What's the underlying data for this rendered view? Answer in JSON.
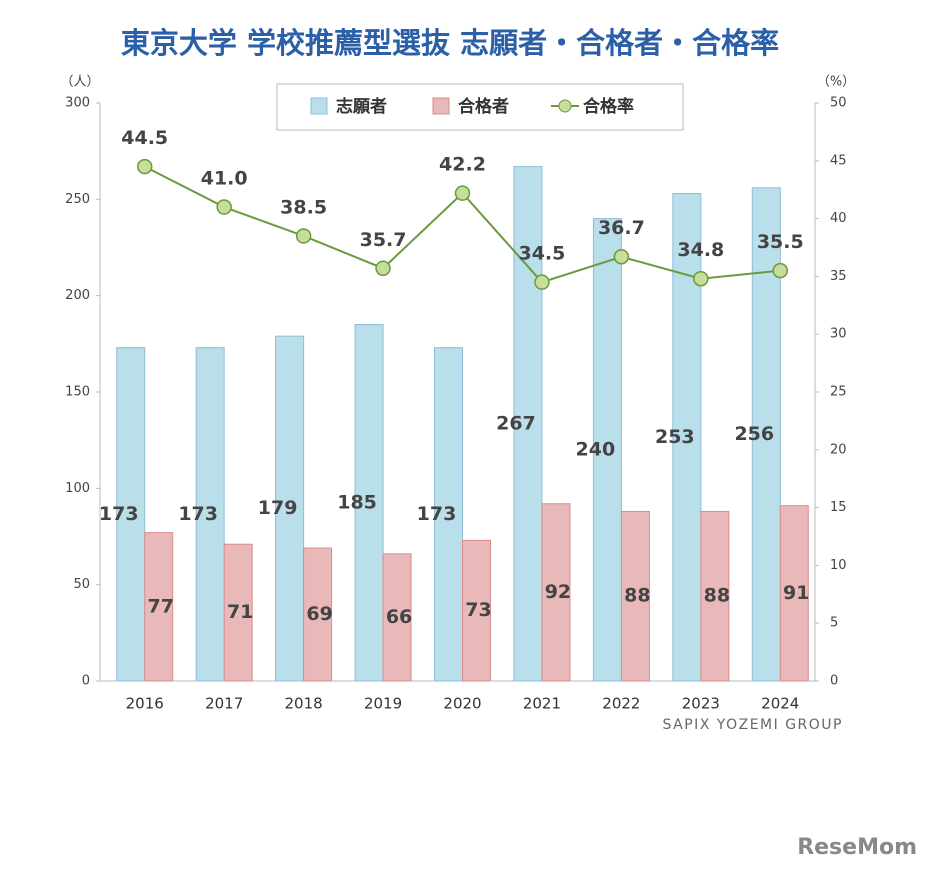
{
  "chart_data": {
    "type": "bar",
    "title": "東京大学 学校推薦型選抜 志願者・合格者・合格率",
    "y_label": "（人）",
    "y2_label": "（%）",
    "categories": [
      "2016",
      "2017",
      "2018",
      "2019",
      "2020",
      "2021",
      "2022",
      "2023",
      "2024"
    ],
    "series": [
      {
        "name": "志願者",
        "color": "#b9dfea",
        "values": [
          173,
          173,
          179,
          185,
          173,
          267,
          240,
          253,
          256
        ]
      },
      {
        "name": "合格者",
        "color": "#e9b8b8",
        "values": [
          77,
          71,
          69,
          66,
          73,
          92,
          88,
          88,
          91
        ]
      },
      {
        "name": "合格率",
        "color": "#6b9a3c",
        "type": "line",
        "axis": "y2",
        "values": [
          44.5,
          41.0,
          38.5,
          35.7,
          42.2,
          34.5,
          36.7,
          34.8,
          35.5
        ],
        "value_labels": [
          "44.5",
          "41.0",
          "38.5",
          "35.7",
          "42.2",
          "34.5",
          "36.7",
          "34.8",
          "35.5"
        ]
      }
    ],
    "ylim": [
      0,
      300
    ],
    "yticks": [
      0,
      50,
      100,
      150,
      200,
      250,
      300
    ],
    "y2lim": [
      0,
      50
    ],
    "y2ticks": [
      0,
      5,
      10,
      15,
      20,
      25,
      30,
      35,
      40,
      45,
      50
    ],
    "source": "SAPIX YOZEMI GROUP",
    "watermark": "ReseMom"
  }
}
